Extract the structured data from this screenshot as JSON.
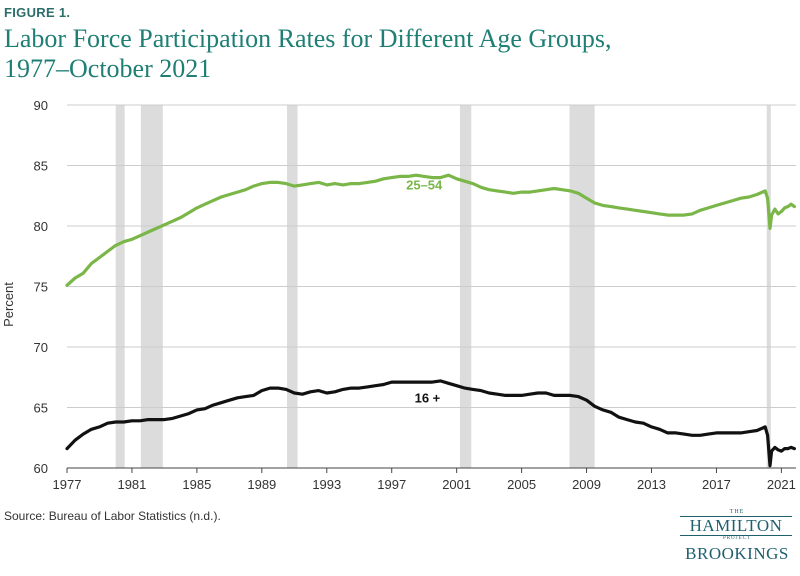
{
  "figure_label": "FIGURE 1.",
  "title_line1": "Labor Force Participation Rates for Different Age Groups,",
  "title_line2": "1977–October 2021",
  "source": "Source: Bureau of Labor Statistics (n.d.).",
  "logo": {
    "the": "THE",
    "hamilton": "HAMILTON",
    "project": "PROJECT",
    "brookings": "BROOKINGS"
  },
  "colors": {
    "series_2554": "#7ab648",
    "series_16plus": "#111111",
    "recession": "#dcdcdc",
    "gridline": "#cccccc",
    "title": "#1f7f74"
  },
  "chart_data": {
    "type": "line",
    "ylabel": "Percent",
    "xlabel": "",
    "ylim": [
      60,
      90
    ],
    "xlim": [
      1977,
      2021.9
    ],
    "yticks": [
      60,
      65,
      70,
      75,
      80,
      85,
      90
    ],
    "xticks": [
      1977,
      1981,
      1985,
      1989,
      1993,
      1997,
      2001,
      2005,
      2009,
      2013,
      2017,
      2021
    ],
    "grid": "horizontal",
    "recessions": [
      [
        1980.0,
        1980.55
      ],
      [
        1981.55,
        1982.9
      ],
      [
        1990.55,
        1991.2
      ],
      [
        2001.2,
        2001.9
      ],
      [
        2007.95,
        2009.5
      ],
      [
        2020.1,
        2020.35
      ]
    ],
    "series": [
      {
        "name": "25–54",
        "label": "25–54",
        "color": "#7ab648",
        "label_x": 1999.0,
        "label_y": 83.0,
        "x": [
          1977.0,
          1977.5,
          1978.0,
          1978.5,
          1979.0,
          1979.5,
          1980.0,
          1980.5,
          1981.0,
          1981.5,
          1982.0,
          1982.5,
          1983.0,
          1983.5,
          1984.0,
          1984.5,
          1985.0,
          1985.5,
          1986.0,
          1986.5,
          1987.0,
          1987.5,
          1988.0,
          1988.5,
          1989.0,
          1989.5,
          1990.0,
          1990.5,
          1991.0,
          1991.5,
          1992.0,
          1992.5,
          1993.0,
          1993.5,
          1994.0,
          1994.5,
          1995.0,
          1995.5,
          1996.0,
          1996.5,
          1997.0,
          1997.5,
          1998.0,
          1998.5,
          1999.0,
          1999.5,
          2000.0,
          2000.5,
          2001.0,
          2001.5,
          2002.0,
          2002.5,
          2003.0,
          2003.5,
          2004.0,
          2004.5,
          2005.0,
          2005.5,
          2006.0,
          2006.5,
          2007.0,
          2007.5,
          2008.0,
          2008.5,
          2009.0,
          2009.5,
          2010.0,
          2010.5,
          2011.0,
          2011.5,
          2012.0,
          2012.5,
          2013.0,
          2013.5,
          2014.0,
          2014.5,
          2015.0,
          2015.5,
          2016.0,
          2016.5,
          2017.0,
          2017.5,
          2018.0,
          2018.5,
          2019.0,
          2019.5,
          2020.0,
          2020.15,
          2020.3,
          2020.4,
          2020.6,
          2020.8,
          2021.0,
          2021.2,
          2021.4,
          2021.6,
          2021.8
        ],
        "values": [
          75.1,
          75.7,
          76.1,
          76.9,
          77.4,
          77.9,
          78.4,
          78.7,
          78.9,
          79.2,
          79.5,
          79.8,
          80.1,
          80.4,
          80.7,
          81.1,
          81.5,
          81.8,
          82.1,
          82.4,
          82.6,
          82.8,
          83.0,
          83.3,
          83.5,
          83.6,
          83.6,
          83.5,
          83.3,
          83.4,
          83.5,
          83.6,
          83.4,
          83.5,
          83.4,
          83.5,
          83.5,
          83.6,
          83.7,
          83.9,
          84.0,
          84.1,
          84.1,
          84.2,
          84.1,
          84.0,
          84.0,
          84.2,
          83.9,
          83.7,
          83.5,
          83.2,
          83.0,
          82.9,
          82.8,
          82.7,
          82.8,
          82.8,
          82.9,
          83.0,
          83.1,
          83.0,
          82.9,
          82.7,
          82.3,
          81.9,
          81.7,
          81.6,
          81.5,
          81.4,
          81.3,
          81.2,
          81.1,
          81.0,
          80.9,
          80.9,
          80.9,
          81.0,
          81.3,
          81.5,
          81.7,
          81.9,
          82.1,
          82.3,
          82.4,
          82.6,
          82.9,
          82.3,
          79.8,
          80.9,
          81.4,
          81.0,
          81.2,
          81.5,
          81.6,
          81.8,
          81.6
        ]
      },
      {
        "name": "16 +",
        "label": "16 +",
        "color": "#111111",
        "label_x": 1999.2,
        "label_y": 65.4,
        "x": [
          1977.0,
          1977.5,
          1978.0,
          1978.5,
          1979.0,
          1979.5,
          1980.0,
          1980.5,
          1981.0,
          1981.5,
          1982.0,
          1982.5,
          1983.0,
          1983.5,
          1984.0,
          1984.5,
          1985.0,
          1985.5,
          1986.0,
          1986.5,
          1987.0,
          1987.5,
          1988.0,
          1988.5,
          1989.0,
          1989.5,
          1990.0,
          1990.5,
          1991.0,
          1991.5,
          1992.0,
          1992.5,
          1993.0,
          1993.5,
          1994.0,
          1994.5,
          1995.0,
          1995.5,
          1996.0,
          1996.5,
          1997.0,
          1997.5,
          1998.0,
          1998.5,
          1999.0,
          1999.5,
          2000.0,
          2000.5,
          2001.0,
          2001.5,
          2002.0,
          2002.5,
          2003.0,
          2003.5,
          2004.0,
          2004.5,
          2005.0,
          2005.5,
          2006.0,
          2006.5,
          2007.0,
          2007.5,
          2008.0,
          2008.5,
          2009.0,
          2009.5,
          2010.0,
          2010.5,
          2011.0,
          2011.5,
          2012.0,
          2012.5,
          2013.0,
          2013.5,
          2014.0,
          2014.5,
          2015.0,
          2015.5,
          2016.0,
          2016.5,
          2017.0,
          2017.5,
          2018.0,
          2018.5,
          2019.0,
          2019.5,
          2020.0,
          2020.15,
          2020.3,
          2020.4,
          2020.6,
          2020.8,
          2021.0,
          2021.2,
          2021.4,
          2021.6,
          2021.8
        ],
        "values": [
          61.6,
          62.3,
          62.8,
          63.2,
          63.4,
          63.7,
          63.8,
          63.8,
          63.9,
          63.9,
          64.0,
          64.0,
          64.0,
          64.1,
          64.3,
          64.5,
          64.8,
          64.9,
          65.2,
          65.4,
          65.6,
          65.8,
          65.9,
          66.0,
          66.4,
          66.6,
          66.6,
          66.5,
          66.2,
          66.1,
          66.3,
          66.4,
          66.2,
          66.3,
          66.5,
          66.6,
          66.6,
          66.7,
          66.8,
          66.9,
          67.1,
          67.1,
          67.1,
          67.1,
          67.1,
          67.1,
          67.2,
          67.0,
          66.8,
          66.6,
          66.5,
          66.4,
          66.2,
          66.1,
          66.0,
          66.0,
          66.0,
          66.1,
          66.2,
          66.2,
          66.0,
          66.0,
          66.0,
          65.9,
          65.6,
          65.1,
          64.8,
          64.6,
          64.2,
          64.0,
          63.8,
          63.7,
          63.4,
          63.2,
          62.9,
          62.9,
          62.8,
          62.7,
          62.7,
          62.8,
          62.9,
          62.9,
          62.9,
          62.9,
          63.0,
          63.1,
          63.4,
          62.7,
          60.2,
          61.4,
          61.7,
          61.5,
          61.4,
          61.6,
          61.6,
          61.7,
          61.6
        ]
      }
    ]
  }
}
